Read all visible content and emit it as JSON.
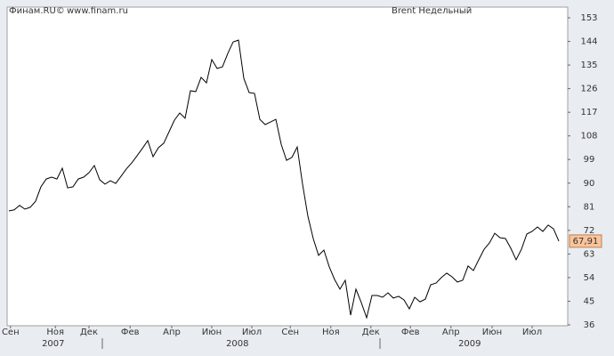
{
  "chart_data": {
    "type": "line",
    "source": "Финам.RU©",
    "site": "www.finam.ru",
    "title": "Brent Недельный",
    "color": "#000000",
    "values": [
      79.4,
      79.8,
      81.5,
      80.1,
      80.8,
      83.1,
      88.6,
      91.6,
      92.3,
      91.6,
      95.7,
      88.2,
      88.6,
      91.6,
      92.3,
      94.0,
      96.7,
      91.3,
      89.6,
      90.9,
      89.9,
      92.6,
      95.4,
      97.7,
      100.4,
      103.2,
      106.2,
      100.1,
      103.5,
      105.2,
      109.6,
      114.0,
      116.7,
      114.7,
      125.2,
      124.9,
      130.3,
      128.2,
      137.1,
      133.7,
      134.3,
      139.4,
      143.8,
      144.5,
      129.9,
      124.5,
      124.2,
      114.3,
      112.3,
      113.3,
      114.3,
      104.8,
      98.7,
      99.8,
      103.8,
      89.6,
      77.4,
      68.9,
      62.5,
      64.5,
      58.1,
      53.3,
      49.6,
      53.0,
      39.7,
      49.6,
      44.5,
      38.7,
      47.2,
      47.2,
      46.5,
      48.2,
      46.2,
      46.9,
      45.5,
      42.1,
      46.5,
      44.8,
      45.8,
      51.3,
      51.9,
      54.0,
      55.7,
      54.3,
      52.3,
      53.0,
      58.4,
      56.7,
      60.8,
      64.8,
      67.2,
      70.9,
      69.2,
      68.9,
      65.2,
      60.8,
      64.8,
      70.6,
      71.6,
      73.3,
      71.6,
      74.0,
      72.6,
      67.91
    ],
    "last_price": {
      "value": 67.91,
      "label": "67,91"
    },
    "xlim": [
      0,
      103
    ],
    "xticks": [
      {
        "value": 0.3,
        "label": "Сен"
      },
      {
        "value": 8.7,
        "label": "Ноя"
      },
      {
        "value": 15,
        "label": "Дек"
      },
      {
        "value": 22.7,
        "label": "Фев"
      },
      {
        "value": 30.5,
        "label": "Апр"
      },
      {
        "value": 38,
        "label": "Июн"
      },
      {
        "value": 45.5,
        "label": "Июл"
      },
      {
        "value": 52.7,
        "label": "Сен"
      },
      {
        "value": 60.3,
        "label": "Ноя"
      },
      {
        "value": 67.8,
        "label": "Дек"
      },
      {
        "value": 75.2,
        "label": "Фев"
      },
      {
        "value": 82.8,
        "label": "Апр"
      },
      {
        "value": 90.5,
        "label": "Июн"
      },
      {
        "value": 98,
        "label": "Июл"
      }
    ],
    "years": [
      {
        "value": 8.3,
        "label": "2007"
      },
      {
        "value": 42.8,
        "label": "2008"
      },
      {
        "value": 86.3,
        "label": "2009"
      }
    ],
    "ylim": [
      36,
      153
    ],
    "yticks": [
      36,
      45,
      54,
      63,
      72,
      81,
      90,
      99,
      108,
      117,
      126,
      135,
      144,
      153
    ],
    "grid": false
  }
}
